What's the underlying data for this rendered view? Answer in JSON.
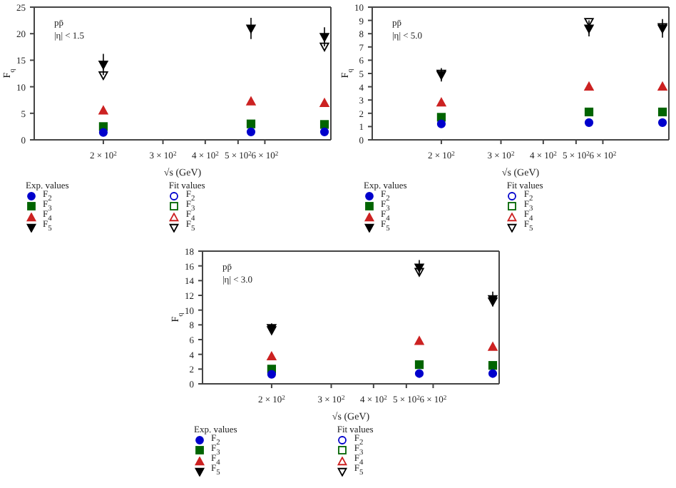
{
  "chart_data": [
    {
      "type": "scatter",
      "xlabel": "√s (GeV)",
      "ylabel": "F$_{q}$",
      "x": [
        200,
        546,
        900
      ],
      "xlim": [
        125,
        940
      ],
      "xticks": [
        {
          "value": 200,
          "label": "2 × 10$^{2}$"
        },
        {
          "value": 300,
          "label": "3 × 10$^{2}$"
        },
        {
          "value": 400,
          "label": "4 × 10$^{2}$"
        },
        {
          "value": 500,
          "label": "5 × 10$^{2}$"
        },
        {
          "value": 600,
          "label": "6 × 10$^{2}$"
        }
      ],
      "ylim": [
        0,
        25
      ],
      "yticks": [
        0,
        5,
        10,
        15,
        20,
        25
      ],
      "log": "x",
      "grid": false,
      "legend": "bottom",
      "annotations": [
        "pp̄",
        "|η| < 1.5",
        "Exp. values",
        "Fit values"
      ],
      "series": [
        {
          "name": "F$_{2}$",
          "color": "#0000cc",
          "marker": "circle",
          "values": [
            1.4,
            1.5,
            1.5
          ]
        },
        {
          "name": "F$_{3}$",
          "color": "#006400",
          "marker": "square",
          "values": [
            2.5,
            3.0,
            2.9
          ]
        },
        {
          "name": "F$_{4}$",
          "color": "#cc2222",
          "marker": "triangle",
          "values": [
            5.5,
            7.2,
            6.9
          ]
        },
        {
          "name": "F$_{5}$",
          "color": "#000000",
          "marker": "triangle-down",
          "values": [
            14.2,
            21.0,
            19.4
          ],
          "errors": [
            2,
            2,
            1.8
          ]
        },
        {
          "name": "F$_{2}$",
          "color": "#0000cc",
          "marker": "circle",
          "values": [
            null,
            null,
            null
          ]
        },
        {
          "name": "F$_{3}$",
          "color": "#006400",
          "marker": "square",
          "values": [
            null,
            null,
            null
          ]
        },
        {
          "name": "F$_{4}$",
          "color": "#cc2222",
          "marker": "triangle",
          "values": [
            null,
            null,
            null
          ]
        },
        {
          "name": "F$_{5}$",
          "color": "#000000",
          "marker": "triangle-down",
          "values": [
            12.2,
            null,
            17.6
          ]
        }
      ]
    },
    {
      "type": "scatter",
      "xlabel": "√s (GeV)",
      "ylabel": "F$_{q}$",
      "x": [
        200,
        546,
        900
      ],
      "xlim": [
        125,
        940
      ],
      "xticks": [
        {
          "value": 200,
          "label": "2 × 10$^{2}$"
        },
        {
          "value": 300,
          "label": "3 × 10$^{2}$"
        },
        {
          "value": 400,
          "label": "4 × 10$^{2}$"
        },
        {
          "value": 500,
          "label": "5 × 10$^{2}$"
        },
        {
          "value": 600,
          "label": "6 × 10$^{2}$"
        }
      ],
      "ylim": [
        0,
        10
      ],
      "yticks": [
        0,
        1,
        2,
        3,
        4,
        5,
        6,
        7,
        8,
        9,
        10
      ],
      "log": "x",
      "grid": false,
      "legend": "bottom",
      "annotations": [
        "pp̄",
        "|η| < 5.0",
        "Exp. values",
        "Fit values"
      ],
      "series": [
        {
          "name": "F$_{2}$",
          "color": "#0000cc",
          "marker": "circle",
          "values": [
            1.2,
            1.3,
            1.3
          ]
        },
        {
          "name": "F$_{3}$",
          "color": "#006400",
          "marker": "square",
          "values": [
            1.7,
            2.1,
            2.1
          ]
        },
        {
          "name": "F$_{4}$",
          "color": "#cc2222",
          "marker": "triangle",
          "values": [
            2.8,
            4.0,
            4.0
          ]
        },
        {
          "name": "F$_{5}$",
          "color": "#000000",
          "marker": "triangle-down",
          "values": [
            4.9,
            8.4,
            8.4
          ],
          "errors": [
            0.5,
            0.6,
            0.7
          ]
        },
        {
          "name": "F$_{2}$",
          "color": "#0000cc",
          "marker": "circle",
          "values": [
            null,
            null,
            null
          ]
        },
        {
          "name": "F$_{3}$",
          "color": "#006400",
          "marker": "square",
          "values": [
            null,
            null,
            null
          ]
        },
        {
          "name": "F$_{4}$",
          "color": "#cc2222",
          "marker": "triangle",
          "values": [
            null,
            null,
            null
          ]
        },
        {
          "name": "F$_{5}$",
          "color": "#000000",
          "marker": "triangle-down",
          "values": [
            5.0,
            8.9,
            8.5
          ]
        }
      ]
    },
    {
      "type": "scatter",
      "xlabel": "√s (GeV)",
      "ylabel": "F$_{q}$",
      "x": [
        200,
        546,
        900
      ],
      "xlim": [
        125,
        940
      ],
      "xticks": [
        {
          "value": 200,
          "label": "2 × 10$^{2}$"
        },
        {
          "value": 300,
          "label": "3 × 10$^{2}$"
        },
        {
          "value": 400,
          "label": "4 × 10$^{2}$"
        },
        {
          "value": 500,
          "label": "5 × 10$^{2}$"
        },
        {
          "value": 600,
          "label": "6 × 10$^{2}$"
        }
      ],
      "ylim": [
        0,
        18
      ],
      "yticks": [
        0,
        2,
        4,
        6,
        8,
        10,
        12,
        14,
        16,
        18
      ],
      "log": "x",
      "grid": false,
      "legend": "bottom",
      "annotations": [
        "pp̄",
        "|η| < 3.0",
        "Exp. values",
        "Fit values"
      ],
      "series": [
        {
          "name": "F$_{2}$",
          "color": "#0000cc",
          "marker": "circle",
          "values": [
            1.3,
            1.4,
            1.4
          ]
        },
        {
          "name": "F$_{3}$",
          "color": "#006400",
          "marker": "square",
          "values": [
            2.0,
            2.6,
            2.5
          ]
        },
        {
          "name": "F$_{4}$",
          "color": "#cc2222",
          "marker": "triangle",
          "values": [
            3.7,
            5.8,
            5.0
          ]
        },
        {
          "name": "F$_{5}$",
          "color": "#000000",
          "marker": "triangle-down",
          "values": [
            7.6,
            15.8,
            11.5
          ],
          "errors": [
            0.6,
            1,
            1
          ]
        },
        {
          "name": "F$_{2}$",
          "color": "#0000cc",
          "marker": "circle",
          "values": [
            null,
            null,
            null
          ]
        },
        {
          "name": "F$_{3}$",
          "color": "#006400",
          "marker": "square",
          "values": [
            null,
            null,
            null
          ]
        },
        {
          "name": "F$_{4}$",
          "color": "#cc2222",
          "marker": "triangle",
          "values": [
            null,
            null,
            null
          ]
        },
        {
          "name": "F$_{5}$",
          "color": "#000000",
          "marker": "triangle-down",
          "values": [
            7.3,
            15.2,
            11.2
          ]
        }
      ]
    }
  ]
}
